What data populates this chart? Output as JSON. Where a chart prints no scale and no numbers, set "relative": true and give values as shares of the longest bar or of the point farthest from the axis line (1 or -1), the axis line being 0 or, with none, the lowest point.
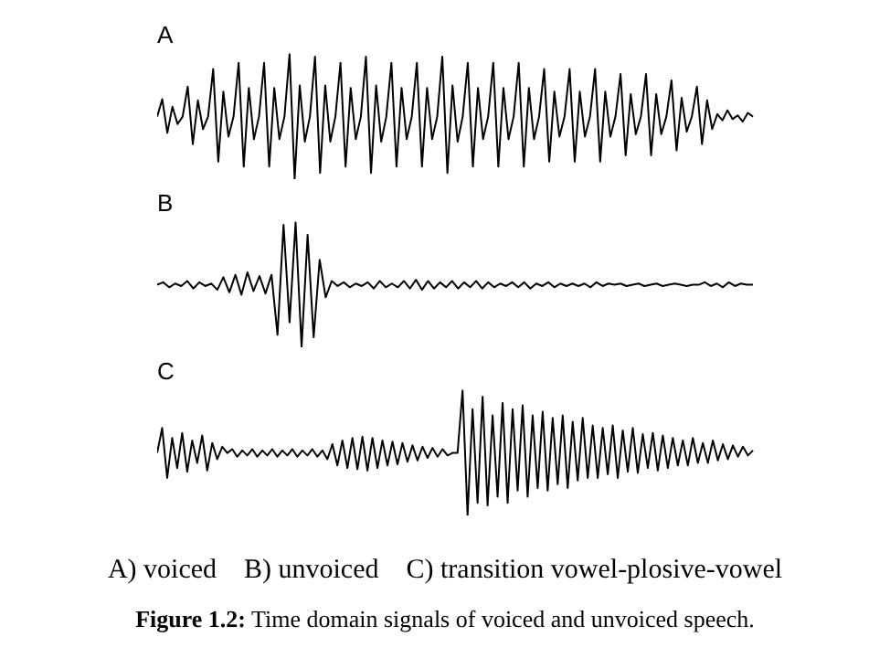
{
  "chart_data": [
    {
      "type": "line",
      "title": "A",
      "relative": true,
      "marker": "none",
      "legend": false,
      "categories": [
        null,
        null,
        null,
        null,
        null,
        null,
        null,
        null,
        null,
        null,
        null,
        null,
        null,
        null,
        null,
        null,
        null,
        null,
        null,
        null,
        null,
        null,
        null,
        null,
        null,
        null,
        null,
        null,
        null,
        null,
        null,
        null,
        null,
        null,
        null,
        null,
        null,
        null,
        null,
        null,
        null,
        null,
        null,
        null,
        null,
        null,
        null,
        null,
        null,
        null,
        null,
        null,
        null,
        null,
        null,
        null,
        null,
        null,
        null,
        null,
        null,
        null,
        null,
        null,
        null,
        null,
        null,
        null,
        null,
        null,
        null,
        null,
        null,
        null,
        null,
        null,
        null,
        null,
        null,
        null,
        null,
        null,
        null,
        null,
        null,
        null,
        null,
        null,
        null,
        null,
        null,
        null,
        null,
        null,
        null,
        null,
        null,
        null,
        null,
        null,
        null,
        null,
        null,
        null,
        null,
        null,
        null,
        null,
        null,
        null,
        null,
        null,
        null,
        null,
        null,
        null,
        null,
        null
      ],
      "series": [
        {
          "color": "#000000",
          "values": [
            0.5,
            0.64,
            0.37,
            0.58,
            0.44,
            0.5,
            0.74,
            0.28,
            0.63,
            0.4,
            0.5,
            0.88,
            0.14,
            0.7,
            0.34,
            0.5,
            0.93,
            0.1,
            0.73,
            0.32,
            0.5,
            0.93,
            0.1,
            0.73,
            0.32,
            0.5,
            1,
            0,
            0.75,
            0.3,
            0.5,
            0.98,
            0.05,
            0.75,
            0.3,
            0.5,
            0.93,
            0.1,
            0.73,
            0.32,
            0.5,
            0.98,
            0.05,
            0.75,
            0.3,
            0.5,
            0.93,
            0.1,
            0.73,
            0.32,
            0.5,
            0.93,
            0.1,
            0.73,
            0.32,
            0.5,
            0.98,
            0.05,
            0.75,
            0.3,
            0.5,
            0.93,
            0.1,
            0.73,
            0.32,
            0.5,
            0.93,
            0.1,
            0.73,
            0.32,
            0.5,
            0.93,
            0.1,
            0.73,
            0.32,
            0.5,
            0.88,
            0.14,
            0.7,
            0.34,
            0.5,
            0.88,
            0.14,
            0.7,
            0.34,
            0.5,
            0.88,
            0.14,
            0.7,
            0.34,
            0.5,
            0.84,
            0.19,
            0.68,
            0.36,
            0.5,
            0.84,
            0.19,
            0.68,
            0.36,
            0.5,
            0.79,
            0.23,
            0.65,
            0.38,
            0.5,
            0.74,
            0.28,
            0.63,
            0.4,
            0.52,
            0.47,
            0.55,
            0.48,
            0.51,
            0.46,
            0.53,
            0.5
          ]
        }
      ]
    },
    {
      "type": "line",
      "title": "B",
      "relative": true,
      "marker": "none",
      "legend": false,
      "categories": [
        null,
        null,
        null,
        null,
        null,
        null,
        null,
        null,
        null,
        null,
        null,
        null,
        null,
        null,
        null,
        null,
        null,
        null,
        null,
        null,
        null,
        null,
        null,
        null,
        null,
        null,
        null,
        null,
        null,
        null,
        null,
        null,
        null,
        null,
        null,
        null,
        null,
        null,
        null,
        null,
        null,
        null,
        null,
        null,
        null,
        null,
        null,
        null,
        null,
        null,
        null,
        null,
        null,
        null,
        null,
        null,
        null,
        null,
        null,
        null,
        null,
        null,
        null,
        null,
        null,
        null,
        null,
        null,
        null,
        null,
        null,
        null,
        null,
        null,
        null,
        null,
        null,
        null,
        null,
        null,
        null,
        null,
        null,
        null,
        null,
        null,
        null,
        null,
        null,
        null,
        null,
        null,
        null,
        null,
        null,
        null,
        null,
        null,
        null,
        null
      ],
      "series": [
        {
          "color": "#000000",
          "values": [
            0.5,
            0.52,
            0.48,
            0.51,
            0.49,
            0.53,
            0.47,
            0.52,
            0.49,
            0.51,
            0.46,
            0.56,
            0.44,
            0.58,
            0.42,
            0.6,
            0.45,
            0.57,
            0.43,
            0.58,
            0.1,
            0.98,
            0.2,
            1,
            0,
            0.9,
            0.08,
            0.7,
            0.4,
            0.53,
            0.49,
            0.52,
            0.48,
            0.51,
            0.49,
            0.52,
            0.47,
            0.53,
            0.48,
            0.51,
            0.48,
            0.53,
            0.47,
            0.54,
            0.46,
            0.53,
            0.47,
            0.52,
            0.48,
            0.53,
            0.47,
            0.52,
            0.48,
            0.53,
            0.47,
            0.52,
            0.48,
            0.51,
            0.49,
            0.52,
            0.48,
            0.52,
            0.47,
            0.51,
            0.49,
            0.52,
            0.48,
            0.51,
            0.49,
            0.51,
            0.49,
            0.51,
            0.48,
            0.52,
            0.49,
            0.51,
            0.5,
            0.51,
            0.49,
            0.5,
            0.51,
            0.49,
            0.5,
            0.51,
            0.49,
            0.5,
            0.51,
            0.5,
            0.49,
            0.5,
            0.5,
            0.52,
            0.49,
            0.51,
            0.48,
            0.52,
            0.49,
            0.51,
            0.5,
            0.5
          ]
        }
      ]
    },
    {
      "type": "line",
      "title": "C",
      "relative": true,
      "marker": "none",
      "legend": false,
      "categories": [
        null,
        null,
        null,
        null,
        null,
        null,
        null,
        null,
        null,
        null,
        null,
        null,
        null,
        null,
        null,
        null,
        null,
        null,
        null,
        null,
        null,
        null,
        null,
        null,
        null,
        null,
        null,
        null,
        null,
        null,
        null,
        null,
        null,
        null,
        null,
        null,
        null,
        null,
        null,
        null,
        null,
        null,
        null,
        null,
        null,
        null,
        null,
        null,
        null,
        null,
        null,
        null,
        null,
        null,
        null,
        null,
        null,
        null,
        null,
        null,
        null,
        null,
        null,
        null,
        null,
        null,
        null,
        null,
        null,
        null,
        null,
        null,
        null,
        null,
        null,
        null,
        null,
        null,
        null,
        null,
        null,
        null,
        null,
        null,
        null,
        null,
        null,
        null,
        null,
        null,
        null,
        null,
        null,
        null,
        null,
        null,
        null,
        null,
        null,
        null,
        null,
        null,
        null,
        null,
        null,
        null,
        null,
        null,
        null,
        null,
        null,
        null,
        null,
        null,
        null,
        null,
        null,
        null,
        null,
        null
      ],
      "series": [
        {
          "color": "#000000",
          "values": [
            0.5,
            0.7,
            0.3,
            0.62,
            0.38,
            0.66,
            0.35,
            0.6,
            0.42,
            0.64,
            0.36,
            0.58,
            0.45,
            0.55,
            0.5,
            0.53,
            0.47,
            0.52,
            0.48,
            0.53,
            0.47,
            0.52,
            0.48,
            0.53,
            0.47,
            0.52,
            0.48,
            0.53,
            0.47,
            0.52,
            0.48,
            0.53,
            0.47,
            0.52,
            0.45,
            0.57,
            0.4,
            0.6,
            0.38,
            0.62,
            0.37,
            0.63,
            0.36,
            0.62,
            0.38,
            0.6,
            0.4,
            0.59,
            0.41,
            0.58,
            0.43,
            0.56,
            0.44,
            0.55,
            0.46,
            0.54,
            0.47,
            0.53,
            0.48,
            0.5,
            0.5,
            1,
            0,
            0.85,
            0.1,
            0.95,
            0.08,
            0.8,
            0.15,
            0.9,
            0.1,
            0.85,
            0.2,
            0.88,
            0.15,
            0.8,
            0.22,
            0.83,
            0.2,
            0.78,
            0.25,
            0.8,
            0.22,
            0.75,
            0.28,
            0.78,
            0.3,
            0.72,
            0.3,
            0.7,
            0.33,
            0.72,
            0.3,
            0.68,
            0.35,
            0.7,
            0.34,
            0.65,
            0.38,
            0.66,
            0.36,
            0.64,
            0.38,
            0.62,
            0.4,
            0.6,
            0.4,
            0.62,
            0.42,
            0.58,
            0.42,
            0.6,
            0.44,
            0.57,
            0.45,
            0.56,
            0.47,
            0.55,
            0.48,
            0.52
          ]
        }
      ],
      "annotations": [
        "A) voiced    B) unvoiced    C) transition vowel-plosive-vowel",
        "Figure 1.2: Time domain signals of voiced and unvoiced speech."
      ]
    }
  ]
}
